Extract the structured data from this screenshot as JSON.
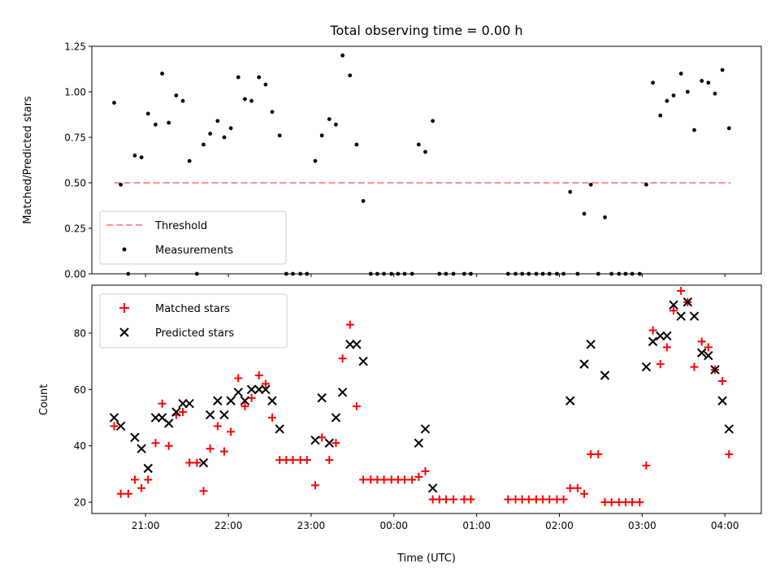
{
  "chart_data": [
    {
      "type": "scatter",
      "title": "Total observing time = 0.00 h",
      "ylabel": "Matched/Predicted stars",
      "xlabel": "",
      "ylim": [
        0,
        1.25
      ],
      "yticks": [
        0.0,
        0.25,
        0.5,
        0.75,
        1.0,
        1.25
      ],
      "ytick_labels": [
        "0.00",
        "0.25",
        "0.50",
        "0.75",
        "1.00",
        "1.25"
      ],
      "x_unit": "hours after 20:00 UTC",
      "xlim": [
        20.35,
        28.44
      ],
      "xticks": [
        21,
        22,
        23,
        24,
        25,
        26,
        27,
        28
      ],
      "grid": false,
      "legend_position": "lower-left",
      "threshold": {
        "name": "Threshold",
        "y": 0.5,
        "x_range": [
          20.62,
          28.07
        ],
        "color": "#ff8080",
        "style": "dashed"
      },
      "series": [
        {
          "name": "Measurements",
          "color": "#000000",
          "marker": "dot",
          "points": [
            [
              20.62,
              0.94
            ],
            [
              20.7,
              0.49
            ],
            [
              20.79,
              0.0
            ],
            [
              20.87,
              0.65
            ],
            [
              20.95,
              0.64
            ],
            [
              21.03,
              0.88
            ],
            [
              21.12,
              0.82
            ],
            [
              21.2,
              1.1
            ],
            [
              21.28,
              0.83
            ],
            [
              21.37,
              0.98
            ],
            [
              21.45,
              0.95
            ],
            [
              21.53,
              0.62
            ],
            [
              21.62,
              0.0
            ],
            [
              21.7,
              0.71
            ],
            [
              21.78,
              0.77
            ],
            [
              21.87,
              0.84
            ],
            [
              21.95,
              0.75
            ],
            [
              22.03,
              0.8
            ],
            [
              22.12,
              1.08
            ],
            [
              22.2,
              0.96
            ],
            [
              22.28,
              0.95
            ],
            [
              22.37,
              1.08
            ],
            [
              22.45,
              1.04
            ],
            [
              22.53,
              0.89
            ],
            [
              22.62,
              0.76
            ],
            [
              22.7,
              0.0
            ],
            [
              22.78,
              0.0
            ],
            [
              22.87,
              0.0
            ],
            [
              22.95,
              0.0
            ],
            [
              23.05,
              0.62
            ],
            [
              23.13,
              0.76
            ],
            [
              23.22,
              0.85
            ],
            [
              23.3,
              0.82
            ],
            [
              23.38,
              1.2
            ],
            [
              23.47,
              1.09
            ],
            [
              23.55,
              0.71
            ],
            [
              23.63,
              0.4
            ],
            [
              23.72,
              0.0
            ],
            [
              23.8,
              0.0
            ],
            [
              23.88,
              0.0
            ],
            [
              23.97,
              0.0
            ],
            [
              24.05,
              0.0
            ],
            [
              24.13,
              0.0
            ],
            [
              24.22,
              0.0
            ],
            [
              24.3,
              0.71
            ],
            [
              24.38,
              0.67
            ],
            [
              24.47,
              0.84
            ],
            [
              24.55,
              0.0
            ],
            [
              24.63,
              0.0
            ],
            [
              24.72,
              0.0
            ],
            [
              24.85,
              0.0
            ],
            [
              24.93,
              0.0
            ],
            [
              25.38,
              0.0
            ],
            [
              25.47,
              0.0
            ],
            [
              25.55,
              0.0
            ],
            [
              25.63,
              0.0
            ],
            [
              25.72,
              0.0
            ],
            [
              25.8,
              0.0
            ],
            [
              25.88,
              0.0
            ],
            [
              25.97,
              0.0
            ],
            [
              26.05,
              0.0
            ],
            [
              26.13,
              0.45
            ],
            [
              26.22,
              0.0
            ],
            [
              26.3,
              0.33
            ],
            [
              26.38,
              0.49
            ],
            [
              26.47,
              0.0
            ],
            [
              26.55,
              0.31
            ],
            [
              26.63,
              0.0
            ],
            [
              26.72,
              0.0
            ],
            [
              26.8,
              0.0
            ],
            [
              26.88,
              0.0
            ],
            [
              26.97,
              0.0
            ],
            [
              27.05,
              0.49
            ],
            [
              27.13,
              1.05
            ],
            [
              27.22,
              0.87
            ],
            [
              27.3,
              0.95
            ],
            [
              27.38,
              0.98
            ],
            [
              27.47,
              1.1
            ],
            [
              27.55,
              1.0
            ],
            [
              27.63,
              0.79
            ],
            [
              27.72,
              1.06
            ],
            [
              27.8,
              1.05
            ],
            [
              27.88,
              0.99
            ],
            [
              27.97,
              1.12
            ],
            [
              28.05,
              0.8
            ]
          ]
        }
      ]
    },
    {
      "type": "scatter",
      "title": "",
      "xlabel": "Time (UTC)",
      "ylabel": "Count",
      "ylim": [
        16,
        97
      ],
      "yticks": [
        20,
        40,
        60,
        80
      ],
      "ytick_labels": [
        "20",
        "40",
        "60",
        "80"
      ],
      "x_unit": "hours after 20:00 UTC",
      "xlim": [
        20.35,
        28.44
      ],
      "xticks": [
        21,
        22,
        23,
        24,
        25,
        26,
        27,
        28
      ],
      "xtick_labels": [
        "21:00",
        "22:00",
        "23:00",
        "00:00",
        "01:00",
        "02:00",
        "03:00",
        "04:00"
      ],
      "grid": false,
      "legend_position": "top-left",
      "series": [
        {
          "name": "Matched stars",
          "color": "#ff0000",
          "marker": "plus",
          "points": [
            [
              20.62,
              47
            ],
            [
              20.7,
              23
            ],
            [
              20.79,
              23
            ],
            [
              20.87,
              28
            ],
            [
              20.95,
              25
            ],
            [
              21.03,
              28
            ],
            [
              21.12,
              41
            ],
            [
              21.2,
              55
            ],
            [
              21.28,
              40
            ],
            [
              21.37,
              51
            ],
            [
              21.45,
              52
            ],
            [
              21.53,
              34
            ],
            [
              21.62,
              34
            ],
            [
              21.7,
              24
            ],
            [
              21.78,
              39
            ],
            [
              21.87,
              47
            ],
            [
              21.95,
              38
            ],
            [
              22.03,
              45
            ],
            [
              22.12,
              64
            ],
            [
              22.2,
              54
            ],
            [
              22.28,
              57
            ],
            [
              22.37,
              65
            ],
            [
              22.45,
              62
            ],
            [
              22.53,
              50
            ],
            [
              22.62,
              35
            ],
            [
              22.7,
              35
            ],
            [
              22.78,
              35
            ],
            [
              22.87,
              35
            ],
            [
              22.95,
              35
            ],
            [
              23.05,
              26
            ],
            [
              23.13,
              43
            ],
            [
              23.22,
              35
            ],
            [
              23.3,
              41
            ],
            [
              23.38,
              71
            ],
            [
              23.47,
              83
            ],
            [
              23.55,
              54
            ],
            [
              23.63,
              28
            ],
            [
              23.72,
              28
            ],
            [
              23.8,
              28
            ],
            [
              23.88,
              28
            ],
            [
              23.97,
              28
            ],
            [
              24.05,
              28
            ],
            [
              24.13,
              28
            ],
            [
              24.22,
              28
            ],
            [
              24.3,
              29
            ],
            [
              24.38,
              31
            ],
            [
              24.47,
              21
            ],
            [
              24.55,
              21
            ],
            [
              24.63,
              21
            ],
            [
              24.72,
              21
            ],
            [
              24.85,
              21
            ],
            [
              24.93,
              21
            ],
            [
              25.38,
              21
            ],
            [
              25.47,
              21
            ],
            [
              25.55,
              21
            ],
            [
              25.63,
              21
            ],
            [
              25.72,
              21
            ],
            [
              25.8,
              21
            ],
            [
              25.88,
              21
            ],
            [
              25.97,
              21
            ],
            [
              26.05,
              21
            ],
            [
              26.13,
              25
            ],
            [
              26.22,
              25
            ],
            [
              26.3,
              23
            ],
            [
              26.38,
              37
            ],
            [
              26.47,
              37
            ],
            [
              26.55,
              20
            ],
            [
              26.63,
              20
            ],
            [
              26.72,
              20
            ],
            [
              26.8,
              20
            ],
            [
              26.88,
              20
            ],
            [
              26.97,
              20
            ],
            [
              27.05,
              33
            ],
            [
              27.13,
              81
            ],
            [
              27.22,
              69
            ],
            [
              27.3,
              75
            ],
            [
              27.38,
              88
            ],
            [
              27.47,
              95
            ],
            [
              27.55,
              91
            ],
            [
              27.63,
              68
            ],
            [
              27.72,
              77
            ],
            [
              27.8,
              75
            ],
            [
              27.88,
              67
            ],
            [
              27.97,
              63
            ],
            [
              28.05,
              37
            ]
          ]
        },
        {
          "name": "Predicted stars",
          "color": "#000000",
          "marker": "x",
          "points": [
            [
              20.62,
              50
            ],
            [
              20.7,
              47
            ],
            [
              20.87,
              43
            ],
            [
              20.95,
              39
            ],
            [
              21.03,
              32
            ],
            [
              21.12,
              50
            ],
            [
              21.2,
              50
            ],
            [
              21.28,
              48
            ],
            [
              21.37,
              52
            ],
            [
              21.45,
              55
            ],
            [
              21.53,
              55
            ],
            [
              21.7,
              34
            ],
            [
              21.78,
              51
            ],
            [
              21.87,
              56
            ],
            [
              21.95,
              51
            ],
            [
              22.03,
              56
            ],
            [
              22.12,
              59
            ],
            [
              22.2,
              56
            ],
            [
              22.28,
              60
            ],
            [
              22.37,
              60
            ],
            [
              22.45,
              60
            ],
            [
              22.53,
              56
            ],
            [
              22.62,
              46
            ],
            [
              23.05,
              42
            ],
            [
              23.13,
              57
            ],
            [
              23.22,
              41
            ],
            [
              23.3,
              50
            ],
            [
              23.38,
              59
            ],
            [
              23.47,
              76
            ],
            [
              23.55,
              76
            ],
            [
              23.63,
              70
            ],
            [
              24.3,
              41
            ],
            [
              24.38,
              46
            ],
            [
              24.47,
              25
            ],
            [
              26.13,
              56
            ],
            [
              26.3,
              69
            ],
            [
              26.38,
              76
            ],
            [
              26.55,
              65
            ],
            [
              27.05,
              68
            ],
            [
              27.13,
              77
            ],
            [
              27.22,
              79
            ],
            [
              27.3,
              79
            ],
            [
              27.38,
              90
            ],
            [
              27.47,
              86
            ],
            [
              27.55,
              91
            ],
            [
              27.63,
              86
            ],
            [
              27.72,
              73
            ],
            [
              27.8,
              72
            ],
            [
              27.88,
              67
            ],
            [
              27.97,
              56
            ],
            [
              28.05,
              46
            ]
          ]
        }
      ]
    }
  ]
}
